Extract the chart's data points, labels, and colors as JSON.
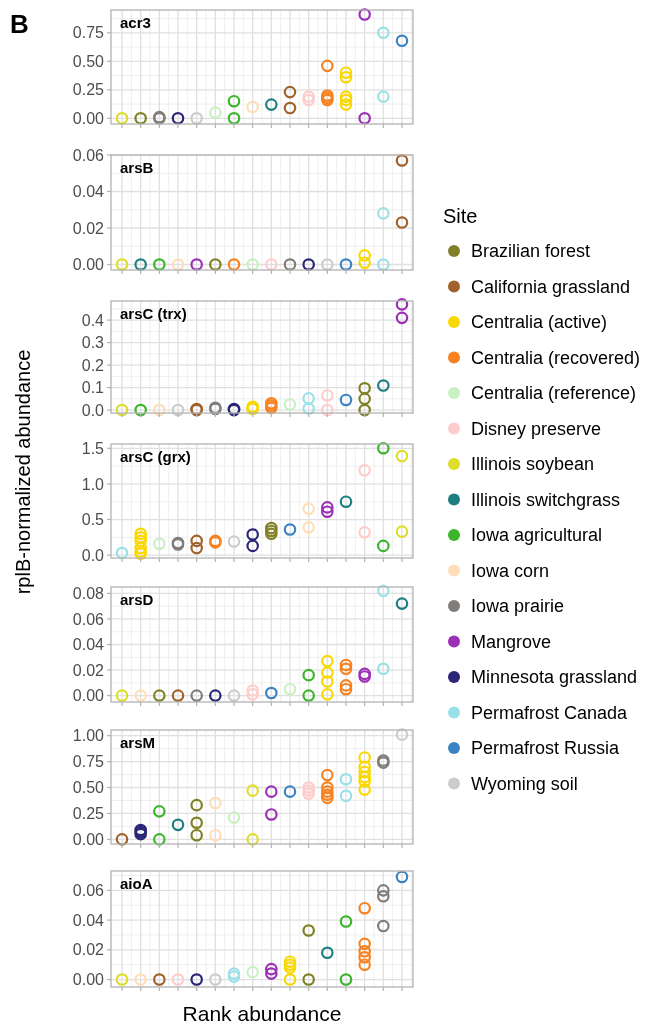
{
  "chart_data": [
    {
      "type": "scatter",
      "title": "acr3",
      "annotations": [
        "B"
      ],
      "marker": "circle",
      "grid": true,
      "categories": [
        null,
        null,
        null,
        null,
        null,
        null,
        null,
        null,
        null,
        null,
        null,
        null,
        null,
        null,
        null,
        null
      ],
      "ylim": [
        -0.05,
        0.95
      ],
      "yticks": [
        {
          "value": 0,
          "label": "0.00"
        },
        {
          "value": 0.25,
          "label": "0.25"
        },
        {
          "value": 0.5,
          "label": "0.50"
        },
        {
          "value": 0.75,
          "label": "0.75"
        }
      ],
      "series": [
        {
          "colors": [
            "#dddd2a",
            "#808026",
            "#807d7a",
            "#2b2577",
            "#cccccc",
            "#c9f0c0",
            "#3bb52a",
            "#ffdeb7",
            "#1d7f7f",
            "#a0622a",
            "#ffcccc",
            "#f7821f",
            "#f9d800",
            "#9b2fb5",
            "#99e0e8",
            "#3b83c4"
          ],
          "values": [
            0,
            0,
            0.01,
            0,
            0,
            0.05,
            0.15,
            0.1,
            0.12,
            0.23,
            0.19,
            0.46,
            0.4,
            0.91,
            0.75,
            0.68
          ]
        },
        {
          "colors": [
            null,
            null,
            "#807d7a",
            null,
            null,
            null,
            "#3bb52a",
            null,
            null,
            "#a0622a",
            "#ffcccc",
            "#f7821f",
            "#f9d800",
            "#9b2fb5",
            "#99e0e8",
            null
          ],
          "values": [
            null,
            null,
            0,
            null,
            null,
            null,
            0,
            null,
            null,
            0.09,
            0.16,
            0.2,
            0.36,
            0,
            0.19,
            null
          ]
        },
        {
          "colors": [
            null,
            null,
            null,
            null,
            null,
            null,
            null,
            null,
            null,
            null,
            null,
            "#f7821f",
            "#f9d800",
            null,
            null,
            null
          ],
          "values": [
            null,
            null,
            null,
            null,
            null,
            null,
            null,
            null,
            null,
            null,
            null,
            0.18,
            0.19,
            null,
            null,
            null
          ]
        },
        {
          "colors": [
            null,
            null,
            null,
            null,
            null,
            null,
            null,
            null,
            null,
            null,
            null,
            "#f7821f",
            "#f9d800",
            null,
            null,
            null
          ],
          "values": [
            null,
            null,
            null,
            null,
            null,
            null,
            null,
            null,
            null,
            null,
            null,
            0.16,
            0.16,
            null,
            null,
            null
          ]
        },
        {
          "colors": [
            null,
            null,
            null,
            null,
            null,
            null,
            null,
            null,
            null,
            null,
            null,
            null,
            "#f9d800",
            null,
            null,
            null
          ],
          "values": [
            null,
            null,
            null,
            null,
            null,
            null,
            null,
            null,
            null,
            null,
            null,
            null,
            0.12,
            null,
            null,
            null
          ]
        }
      ]
    },
    {
      "type": "scatter",
      "title": "arsB",
      "marker": "circle",
      "grid": true,
      "categories": [
        null,
        null,
        null,
        null,
        null,
        null,
        null,
        null,
        null,
        null,
        null,
        null,
        null,
        null,
        null,
        null
      ],
      "ylim": [
        -0.003,
        0.06
      ],
      "yticks": [
        {
          "value": 0,
          "label": "0.00"
        },
        {
          "value": 0.02,
          "label": "0.02"
        },
        {
          "value": 0.04,
          "label": "0.04"
        },
        {
          "value": 0.06,
          "label": "0.06"
        }
      ],
      "series": [
        {
          "colors": [
            "#dddd2a",
            "#1d7f7f",
            "#3bb52a",
            "#ffdeb7",
            "#9b2fb5",
            "#808026",
            "#f7821f",
            "#c9f0c0",
            "#ffcccc",
            "#807d7a",
            "#2b2577",
            "#cccccc",
            "#3b83c4",
            "#f9d800",
            "#99e0e8",
            "#a0622a"
          ],
          "values": [
            0,
            0,
            0,
            0,
            0,
            0,
            0,
            0,
            0,
            0,
            0,
            0,
            0,
            0.005,
            0.028,
            0.057
          ]
        },
        {
          "colors": [
            null,
            null,
            null,
            null,
            null,
            null,
            null,
            null,
            null,
            null,
            null,
            null,
            null,
            "#f9d800",
            "#99e0e8",
            "#a0622a"
          ],
          "values": [
            null,
            null,
            null,
            null,
            null,
            null,
            null,
            null,
            null,
            null,
            null,
            null,
            null,
            0.001,
            0,
            0.023
          ]
        }
      ]
    },
    {
      "type": "scatter",
      "title": "arsC (trx)",
      "marker": "circle",
      "grid": true,
      "categories": [
        null,
        null,
        null,
        null,
        null,
        null,
        null,
        null,
        null,
        null,
        null,
        null,
        null,
        null,
        null,
        null
      ],
      "ylim": [
        -0.013,
        0.485
      ],
      "yticks": [
        {
          "value": 0,
          "label": "0.0"
        },
        0.1,
        0.2,
        0.3,
        0.4
      ],
      "series": [
        {
          "colors": [
            "#dddd2a",
            "#3bb52a",
            "#ffdeb7",
            "#cccccc",
            "#a0622a",
            "#807d7a",
            "#2b2577",
            "#f9d800",
            "#f7821f",
            "#c9f0c0",
            "#99e0e8",
            "#ffcccc",
            "#3b83c4",
            "#808026",
            "#1d7f7f",
            "#9b2fb5"
          ],
          "values": [
            0,
            0,
            0,
            0,
            0.005,
            0.01,
            0.005,
            0.015,
            0.03,
            0.025,
            0.052,
            0.065,
            0.045,
            0.097,
            0.109,
            0.47
          ]
        },
        {
          "colors": [
            null,
            null,
            null,
            null,
            "#a0622a",
            "#807d7a",
            "#2b2577",
            "#f9d800",
            "#f7821f",
            null,
            "#99e0e8",
            "#ffcccc",
            null,
            "#808026",
            null,
            "#9b2fb5"
          ],
          "values": [
            null,
            null,
            null,
            null,
            0,
            0.005,
            0,
            0.01,
            0.02,
            null,
            0.007,
            0,
            null,
            0.05,
            null,
            0.41
          ]
        },
        {
          "colors": [
            null,
            null,
            null,
            null,
            null,
            null,
            null,
            "#f9d800",
            "#f7821f",
            null,
            null,
            null,
            null,
            "#808026",
            null,
            null
          ],
          "values": [
            null,
            null,
            null,
            null,
            null,
            null,
            null,
            0.005,
            0.01,
            null,
            null,
            null,
            null,
            0,
            null,
            null
          ]
        }
      ]
    },
    {
      "type": "scatter",
      "title": "arsC (grx)",
      "ylabel": "rplB-normalized abundance",
      "legend": "right",
      "legend_title": "Site",
      "marker": "circle",
      "grid": true,
      "categories": [
        null,
        null,
        null,
        null,
        null,
        null,
        null,
        null,
        null,
        null,
        null,
        null,
        null,
        null,
        null,
        null
      ],
      "ylim": [
        -0.04,
        1.56
      ],
      "yticks": [
        {
          "value": 0,
          "label": "0.0"
        },
        0.5,
        {
          "value": 1,
          "label": "1.0"
        },
        1.5
      ],
      "series": [
        {
          "name": "Brazilian forest",
          "color": "#808026",
          "values": [
            null,
            null,
            null,
            null,
            null,
            null,
            null,
            null,
            0.38,
            null,
            null,
            null,
            null,
            null,
            null,
            null
          ]
        },
        {
          "name": "California grassland",
          "color": "#a0622a",
          "values": [
            null,
            null,
            null,
            null,
            0.2,
            null,
            null,
            null,
            null,
            null,
            null,
            null,
            null,
            null,
            null,
            null
          ]
        },
        {
          "name": "Centralia (active)",
          "color": "#f9d800",
          "values": [
            null,
            0.3,
            null,
            null,
            null,
            null,
            null,
            null,
            null,
            null,
            null,
            null,
            null,
            null,
            null,
            null
          ]
        },
        {
          "name": "Centralia (recovered)",
          "color": "#f7821f",
          "values": [
            null,
            null,
            null,
            null,
            null,
            0.2,
            null,
            null,
            null,
            null,
            null,
            null,
            null,
            null,
            null,
            null
          ]
        },
        {
          "name": "Centralia (reference)",
          "color": "#c9f0c0",
          "values": [
            null,
            null,
            0.16,
            null,
            null,
            null,
            null,
            null,
            null,
            null,
            null,
            null,
            null,
            null,
            null,
            null
          ]
        },
        {
          "name": "Disney preserve",
          "color": "#ffcccc",
          "values": [
            null,
            null,
            null,
            null,
            null,
            null,
            null,
            null,
            null,
            null,
            null,
            null,
            null,
            1.19,
            null,
            null
          ]
        },
        {
          "name": "Illinois soybean",
          "color": "#dddd2a",
          "values": [
            null,
            null,
            null,
            null,
            null,
            null,
            null,
            null,
            null,
            null,
            null,
            null,
            null,
            null,
            null,
            1.39
          ]
        },
        {
          "name": "Illinois switchgrass",
          "color": "#1d7f7f",
          "values": [
            null,
            null,
            null,
            null,
            null,
            null,
            null,
            null,
            null,
            null,
            null,
            null,
            0.75,
            null,
            null,
            null
          ]
        },
        {
          "name": "Iowa agricultural",
          "color": "#3bb52a",
          "values": [
            null,
            null,
            null,
            null,
            null,
            null,
            null,
            null,
            null,
            null,
            null,
            null,
            null,
            null,
            1.5,
            null
          ]
        },
        {
          "name": "Iowa corn",
          "color": "#ffdeb7",
          "values": [
            null,
            null,
            null,
            null,
            null,
            null,
            null,
            null,
            null,
            null,
            0.65,
            null,
            null,
            null,
            null,
            null
          ]
        },
        {
          "name": "Iowa prairie",
          "color": "#807d7a",
          "values": [
            null,
            null,
            null,
            0.17,
            null,
            null,
            null,
            null,
            null,
            null,
            null,
            null,
            null,
            null,
            null,
            null
          ]
        },
        {
          "name": "Mangrove",
          "color": "#9b2fb5",
          "values": [
            null,
            null,
            null,
            null,
            null,
            null,
            null,
            null,
            null,
            null,
            null,
            0.67,
            null,
            null,
            null,
            null
          ]
        },
        {
          "name": "Minnesota grassland",
          "color": "#2b2577",
          "values": [
            null,
            null,
            null,
            null,
            null,
            null,
            null,
            0.29,
            null,
            null,
            null,
            null,
            null,
            null,
            null,
            null
          ]
        },
        {
          "name": "Permafrost Canada",
          "color": "#99e0e8",
          "values": [
            0.03,
            null,
            null,
            null,
            null,
            null,
            null,
            null,
            null,
            null,
            null,
            null,
            null,
            null,
            null,
            null
          ]
        },
        {
          "name": "Permafrost Russia",
          "color": "#3b83c4",
          "values": [
            null,
            null,
            null,
            null,
            null,
            null,
            null,
            null,
            null,
            0.36,
            null,
            null,
            null,
            null,
            null,
            null
          ]
        },
        {
          "name": "Wyoming soil",
          "color": "#cccccc",
          "values": [
            null,
            null,
            null,
            null,
            null,
            null,
            0.19,
            null,
            null,
            null,
            null,
            null,
            null,
            null,
            null,
            null
          ]
        },
        {
          "colors": [
            null,
            "#f9d800",
            null,
            "#807d7a",
            "#a0622a",
            "#f7821f",
            null,
            "#2b2577",
            "#808026",
            null,
            "#ffdeb7",
            "#9b2fb5",
            null,
            "#ffcccc",
            "#3bb52a",
            "#dddd2a"
          ],
          "values": [
            null,
            0.25,
            null,
            0.15,
            0.1,
            0.18,
            null,
            0.13,
            0.34,
            null,
            0.39,
            0.61,
            null,
            0.32,
            0.13,
            0.33
          ]
        },
        {
          "colors": [
            null,
            "#f9d800",
            null,
            null,
            null,
            null,
            null,
            null,
            "#808026",
            null,
            null,
            null,
            null,
            null,
            null,
            null
          ],
          "values": [
            null,
            0.2,
            null,
            null,
            null,
            null,
            null,
            null,
            0.3,
            null,
            null,
            null,
            null,
            null,
            null,
            null
          ]
        },
        {
          "colors": [
            null,
            "#f9d800",
            null,
            null,
            null,
            null,
            null,
            null,
            null,
            null,
            null,
            null,
            null,
            null,
            null,
            null
          ],
          "values": [
            null,
            0.1,
            null,
            null,
            null,
            null,
            null,
            null,
            null,
            null,
            null,
            null,
            null,
            null,
            null,
            null
          ]
        },
        {
          "colors": [
            null,
            "#f9d800",
            null,
            null,
            null,
            null,
            null,
            null,
            null,
            null,
            null,
            null,
            null,
            null,
            null,
            null
          ],
          "values": [
            null,
            0.05,
            null,
            null,
            null,
            null,
            null,
            null,
            null,
            null,
            null,
            null,
            null,
            null,
            null,
            null
          ]
        },
        {
          "colors": [
            null,
            "#f9d800",
            null,
            null,
            null,
            null,
            null,
            null,
            null,
            null,
            null,
            null,
            null,
            null,
            null,
            null
          ],
          "values": [
            null,
            0.02,
            null,
            null,
            null,
            null,
            null,
            null,
            null,
            null,
            null,
            null,
            null,
            null,
            null,
            null
          ]
        }
      ]
    },
    {
      "type": "scatter",
      "title": "arsD",
      "marker": "circle",
      "grid": true,
      "categories": [
        null,
        null,
        null,
        null,
        null,
        null,
        null,
        null,
        null,
        null,
        null,
        null,
        null,
        null,
        null,
        null
      ],
      "ylim": [
        -0.005,
        0.085
      ],
      "yticks": [
        {
          "value": 0,
          "label": "0.00"
        },
        {
          "value": 0.02,
          "label": "0.02"
        },
        {
          "value": 0.04,
          "label": "0.04"
        },
        {
          "value": 0.06,
          "label": "0.06"
        },
        {
          "value": 0.08,
          "label": "0.08"
        }
      ],
      "series": [
        {
          "colors": [
            "#dddd2a",
            "#ffdeb7",
            "#808026",
            "#a0622a",
            "#807d7a",
            "#2b2577",
            "#cccccc",
            "#ffcccc",
            "#3b83c4",
            "#c9f0c0",
            "#3bb52a",
            "#f9d800",
            "#f7821f",
            "#9b2fb5",
            "#99e0e8",
            "#1d7f7f"
          ],
          "values": [
            0,
            0,
            0,
            0,
            0,
            0,
            0,
            0.004,
            0.002,
            0.005,
            0.016,
            0.027,
            0.024,
            0.017,
            0.082,
            0.072
          ]
        },
        {
          "colors": [
            null,
            null,
            null,
            null,
            null,
            null,
            null,
            "#ffcccc",
            null,
            null,
            "#3bb52a",
            "#f9d800",
            "#f7821f",
            "#9b2fb5",
            "#99e0e8",
            null
          ],
          "values": [
            null,
            null,
            null,
            null,
            null,
            null,
            null,
            0.001,
            null,
            null,
            0,
            0.018,
            0.021,
            0.015,
            0.021,
            null
          ]
        },
        {
          "colors": [
            null,
            null,
            null,
            null,
            null,
            null,
            null,
            null,
            null,
            null,
            null,
            "#f9d800",
            "#f7821f",
            null,
            null,
            null
          ],
          "values": [
            null,
            null,
            null,
            null,
            null,
            null,
            null,
            null,
            null,
            null,
            null,
            0.011,
            0.008,
            null,
            null,
            null
          ]
        },
        {
          "colors": [
            null,
            null,
            null,
            null,
            null,
            null,
            null,
            null,
            null,
            null,
            null,
            "#f9d800",
            "#f7821f",
            null,
            null,
            null
          ],
          "values": [
            null,
            null,
            null,
            null,
            null,
            null,
            null,
            null,
            null,
            null,
            null,
            0.001,
            0.005,
            null,
            null,
            null
          ]
        }
      ]
    },
    {
      "type": "scatter",
      "title": "arsM",
      "marker": "circle",
      "grid": true,
      "categories": [
        null,
        null,
        null,
        null,
        null,
        null,
        null,
        null,
        null,
        null,
        null,
        null,
        null,
        null,
        null,
        null
      ],
      "ylim": [
        -0.045,
        1.055
      ],
      "yticks": [
        {
          "value": 0,
          "label": "0.00"
        },
        {
          "value": 0.25,
          "label": "0.25"
        },
        {
          "value": 0.5,
          "label": "0.50"
        },
        {
          "value": 0.75,
          "label": "0.75"
        },
        {
          "value": 1,
          "label": "1.00"
        }
      ],
      "series": [
        {
          "colors": [
            "#a0622a",
            "#2b2577",
            "#3bb52a",
            "#1d7f7f",
            "#808026",
            "#ffdeb7",
            "#c9f0c0",
            "#dddd2a",
            "#9b2fb5",
            "#3b83c4",
            "#ffcccc",
            "#f7821f",
            "#99e0e8",
            "#f9d800",
            "#807d7a",
            "#cccccc"
          ],
          "values": [
            0,
            0.09,
            0.27,
            0.14,
            0.33,
            0.35,
            0.21,
            0.47,
            0.46,
            0.46,
            0.5,
            0.62,
            0.58,
            0.79,
            0.76,
            1.01
          ]
        },
        {
          "colors": [
            null,
            "#2b2577",
            "#3bb52a",
            null,
            "#808026",
            "#ffdeb7",
            null,
            "#dddd2a",
            "#9b2fb5",
            null,
            "#ffcccc",
            "#f7821f",
            "#99e0e8",
            "#f9d800",
            "#807d7a",
            null
          ],
          "values": [
            null,
            0.07,
            0,
            null,
            0.16,
            0.04,
            null,
            0,
            0.24,
            null,
            0.47,
            0.5,
            0.42,
            0.7,
            0.74,
            null
          ]
        },
        {
          "colors": [
            null,
            "#2b2577",
            null,
            null,
            "#808026",
            null,
            null,
            null,
            null,
            null,
            "#ffcccc",
            "#f7821f",
            null,
            "#f9d800",
            null,
            null
          ],
          "values": [
            null,
            0.05,
            null,
            null,
            0.04,
            null,
            null,
            null,
            null,
            null,
            0.44,
            0.46,
            null,
            0.65,
            null,
            null
          ]
        },
        {
          "colors": [
            null,
            null,
            null,
            null,
            null,
            null,
            null,
            null,
            null,
            null,
            null,
            "#f7821f",
            null,
            "#f9d800",
            null,
            null
          ],
          "values": [
            null,
            null,
            null,
            null,
            null,
            null,
            null,
            null,
            null,
            null,
            null,
            0.43,
            null,
            0.6,
            null,
            null
          ]
        },
        {
          "colors": [
            null,
            null,
            null,
            null,
            null,
            null,
            null,
            null,
            null,
            null,
            null,
            "#f7821f",
            null,
            "#f9d800",
            null,
            null
          ],
          "values": [
            null,
            null,
            null,
            null,
            null,
            null,
            null,
            null,
            null,
            null,
            null,
            0.4,
            null,
            0.56,
            null,
            null
          ]
        },
        {
          "colors": [
            null,
            null,
            null,
            null,
            null,
            null,
            null,
            null,
            null,
            null,
            null,
            null,
            null,
            "#f9d800",
            null,
            null
          ],
          "values": [
            null,
            null,
            null,
            null,
            null,
            null,
            null,
            null,
            null,
            null,
            null,
            null,
            null,
            0.48,
            null,
            null
          ]
        }
      ]
    },
    {
      "type": "scatter",
      "title": "aioA",
      "xlabel": "Rank abundance",
      "marker": "circle",
      "grid": true,
      "categories": [
        null,
        null,
        null,
        null,
        null,
        null,
        null,
        null,
        null,
        null,
        null,
        null,
        null,
        null,
        null,
        null
      ],
      "ylim": [
        -0.005,
        0.073
      ],
      "yticks": [
        {
          "value": 0,
          "label": "0.00"
        },
        {
          "value": 0.02,
          "label": "0.02"
        },
        {
          "value": 0.04,
          "label": "0.04"
        },
        {
          "value": 0.06,
          "label": "0.06"
        }
      ],
      "series": [
        {
          "colors": [
            "#dddd2a",
            "#ffdeb7",
            "#a0622a",
            "#ffcccc",
            "#2b2577",
            "#cccccc",
            "#99e0e8",
            "#c9f0c0",
            "#9b2fb5",
            "#f9d800",
            "#808026",
            "#1d7f7f",
            "#3bb52a",
            "#f7821f",
            "#807d7a",
            "#3b83c4"
          ],
          "values": [
            0,
            0,
            0,
            0,
            0,
            0,
            0.004,
            0.005,
            0.007,
            0.012,
            0.033,
            0.018,
            0.039,
            0.048,
            0.06,
            0.069
          ]
        },
        {
          "colors": [
            null,
            null,
            null,
            null,
            null,
            null,
            "#99e0e8",
            null,
            "#9b2fb5",
            "#f9d800",
            "#808026",
            null,
            "#3bb52a",
            "#f7821f",
            "#807d7a",
            null
          ],
          "values": [
            null,
            null,
            null,
            null,
            null,
            null,
            0.002,
            null,
            0.004,
            0.01,
            0,
            null,
            0,
            0.024,
            0.056,
            null
          ]
        },
        {
          "colors": [
            null,
            null,
            null,
            null,
            null,
            null,
            null,
            null,
            null,
            "#f9d800",
            null,
            null,
            null,
            "#f7821f",
            "#807d7a",
            null
          ],
          "values": [
            null,
            null,
            null,
            null,
            null,
            null,
            null,
            null,
            null,
            0.008,
            null,
            null,
            null,
            0.019,
            0.036,
            null
          ]
        },
        {
          "colors": [
            null,
            null,
            null,
            null,
            null,
            null,
            null,
            null,
            null,
            "#f9d800",
            null,
            null,
            null,
            "#f7821f",
            null,
            null
          ],
          "values": [
            null,
            null,
            null,
            null,
            null,
            null,
            null,
            null,
            null,
            0,
            null,
            null,
            null,
            0.015,
            null,
            null
          ]
        },
        {
          "colors": [
            null,
            null,
            null,
            null,
            null,
            null,
            null,
            null,
            null,
            null,
            null,
            null,
            null,
            "#f7821f",
            null,
            null
          ],
          "values": [
            null,
            null,
            null,
            null,
            null,
            null,
            null,
            null,
            null,
            null,
            null,
            null,
            null,
            0.01,
            null,
            null
          ]
        }
      ]
    }
  ]
}
